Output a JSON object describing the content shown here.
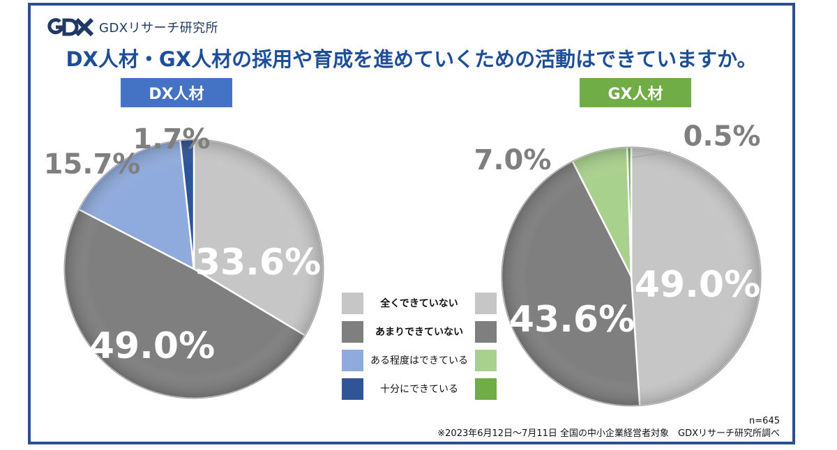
{
  "brand": {
    "name": "GDXリサーチ研究所",
    "logo_icon": "gdx-logo-icon"
  },
  "title": "DX人材・GX人材の採用や育成を進めていくための活動はできていますか。",
  "chart_data": [
    {
      "type": "pie",
      "title": "DX人材",
      "categories": [
        "全くできていない",
        "あまりできていない",
        "ある程度はできている",
        "十分にできている"
      ],
      "values": [
        33.6,
        49.0,
        15.7,
        1.7
      ],
      "labels": [
        "33.6%",
        "49.0%",
        "15.7%",
        "1.7%"
      ],
      "colors": [
        "#c6c6c6",
        "#7f7f7f",
        "#8faadc",
        "#2f5597"
      ]
    },
    {
      "type": "pie",
      "title": "GX人材",
      "categories": [
        "全くできていない",
        "あまりできていない",
        "ある程度はできている",
        "十分にできている"
      ],
      "values": [
        49.0,
        43.6,
        7.0,
        0.5
      ],
      "labels": [
        "49.0%",
        "43.6%",
        "7.0%",
        "0.5%"
      ],
      "colors": [
        "#c6c6c6",
        "#7f7f7f",
        "#a9d18e",
        "#70ad47"
      ]
    }
  ],
  "legend": {
    "items": [
      {
        "label": "全くできていない",
        "left_color": "#c6c6c6",
        "right_color": "#c6c6c6",
        "bold": true
      },
      {
        "label": "あまりできていない",
        "left_color": "#7f7f7f",
        "right_color": "#7f7f7f",
        "bold": true
      },
      {
        "label": "ある程度はできている",
        "left_color": "#8faadc",
        "right_color": "#a9d18e",
        "bold": false
      },
      {
        "label": "十分にできている",
        "left_color": "#2f5597",
        "right_color": "#70ad47",
        "bold": false
      }
    ]
  },
  "footer": {
    "n": "n=645",
    "note": "※2023年6月12日～7月11日 全国の中小企業経営者対象　GDXリサーチ研究所調べ"
  }
}
